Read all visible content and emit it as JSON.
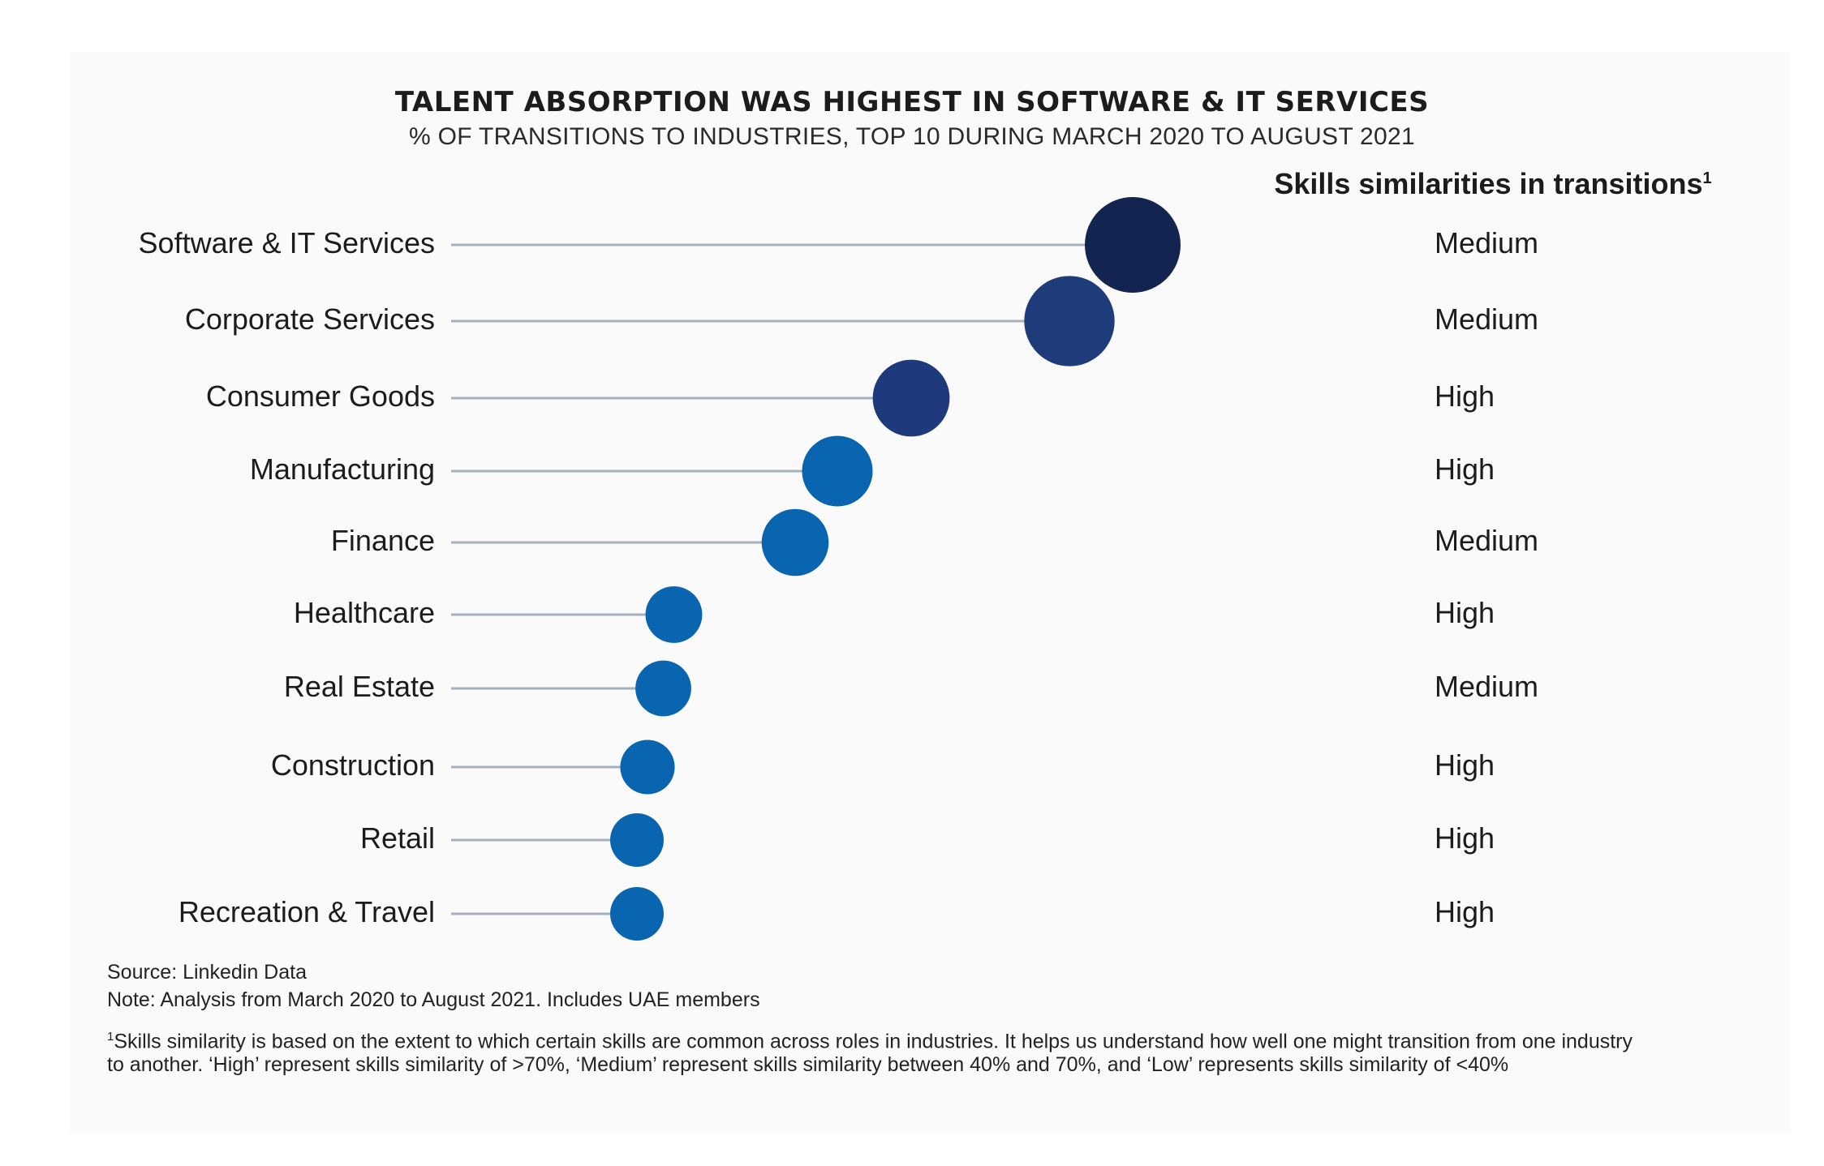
{
  "title": "TALENT ABSORPTION WAS HIGHEST IN SOFTWARE & IT SERVICES",
  "subtitle": "% OF TRANSITIONS TO INDUSTRIES, TOP 10 DURING MARCH 2020 TO AUGUST 2021",
  "similarity_header": "Skills similarities in transitions",
  "similarity_header_sup": "1",
  "chart_data": {
    "type": "scatter",
    "title": "TALENT ABSORPTION WAS HIGHEST IN SOFTWARE & IT SERVICES",
    "subtitle": "% OF TRANSITIONS TO INDUSTRIES, TOP 10 DURING MARCH 2020 TO AUGUST 2021",
    "categories": [
      "Software & IT Services",
      "Corporate Services",
      "Consumer Goods",
      "Manufacturing",
      "Finance",
      "Healthcare",
      "Real Estate",
      "Construction",
      "Retail",
      "Recreation & Travel"
    ],
    "values": [
      13.4,
      12.2,
      9.2,
      7.8,
      7.0,
      4.7,
      4.5,
      4.2,
      4.0,
      4.0
    ],
    "similarity": [
      "Medium",
      "Medium",
      "High",
      "High",
      "Medium",
      "High",
      "Medium",
      "High",
      "High",
      "High"
    ],
    "colors": [
      "#142450",
      "#1f3c7a",
      "#1e3a7c",
      "#0a65b0",
      "#0a65b0",
      "#0a65b0",
      "#0a65b0",
      "#0a65b0",
      "#0a65b0",
      "#0a65b0"
    ],
    "line_color": "#a7afbc",
    "xlim": [
      0,
      14
    ],
    "grid": false,
    "legend": "none"
  },
  "footnotes": {
    "source": "Source: Linkedin Data",
    "note": "Note: Analysis from March 2020 to August 2021. Includes UAE members",
    "footnote_mark": "1",
    "footnote_line1": "Skills similarity is based on the extent to which certain skills are common across roles in industries. It helps us understand how well one might transition from one industry",
    "footnote_line2": "to another. ‘High’ represent skills similarity of >70%, ‘Medium’ represent skills similarity between 40% and 70%, and ‘Low’ represents skills similarity of <40%"
  }
}
